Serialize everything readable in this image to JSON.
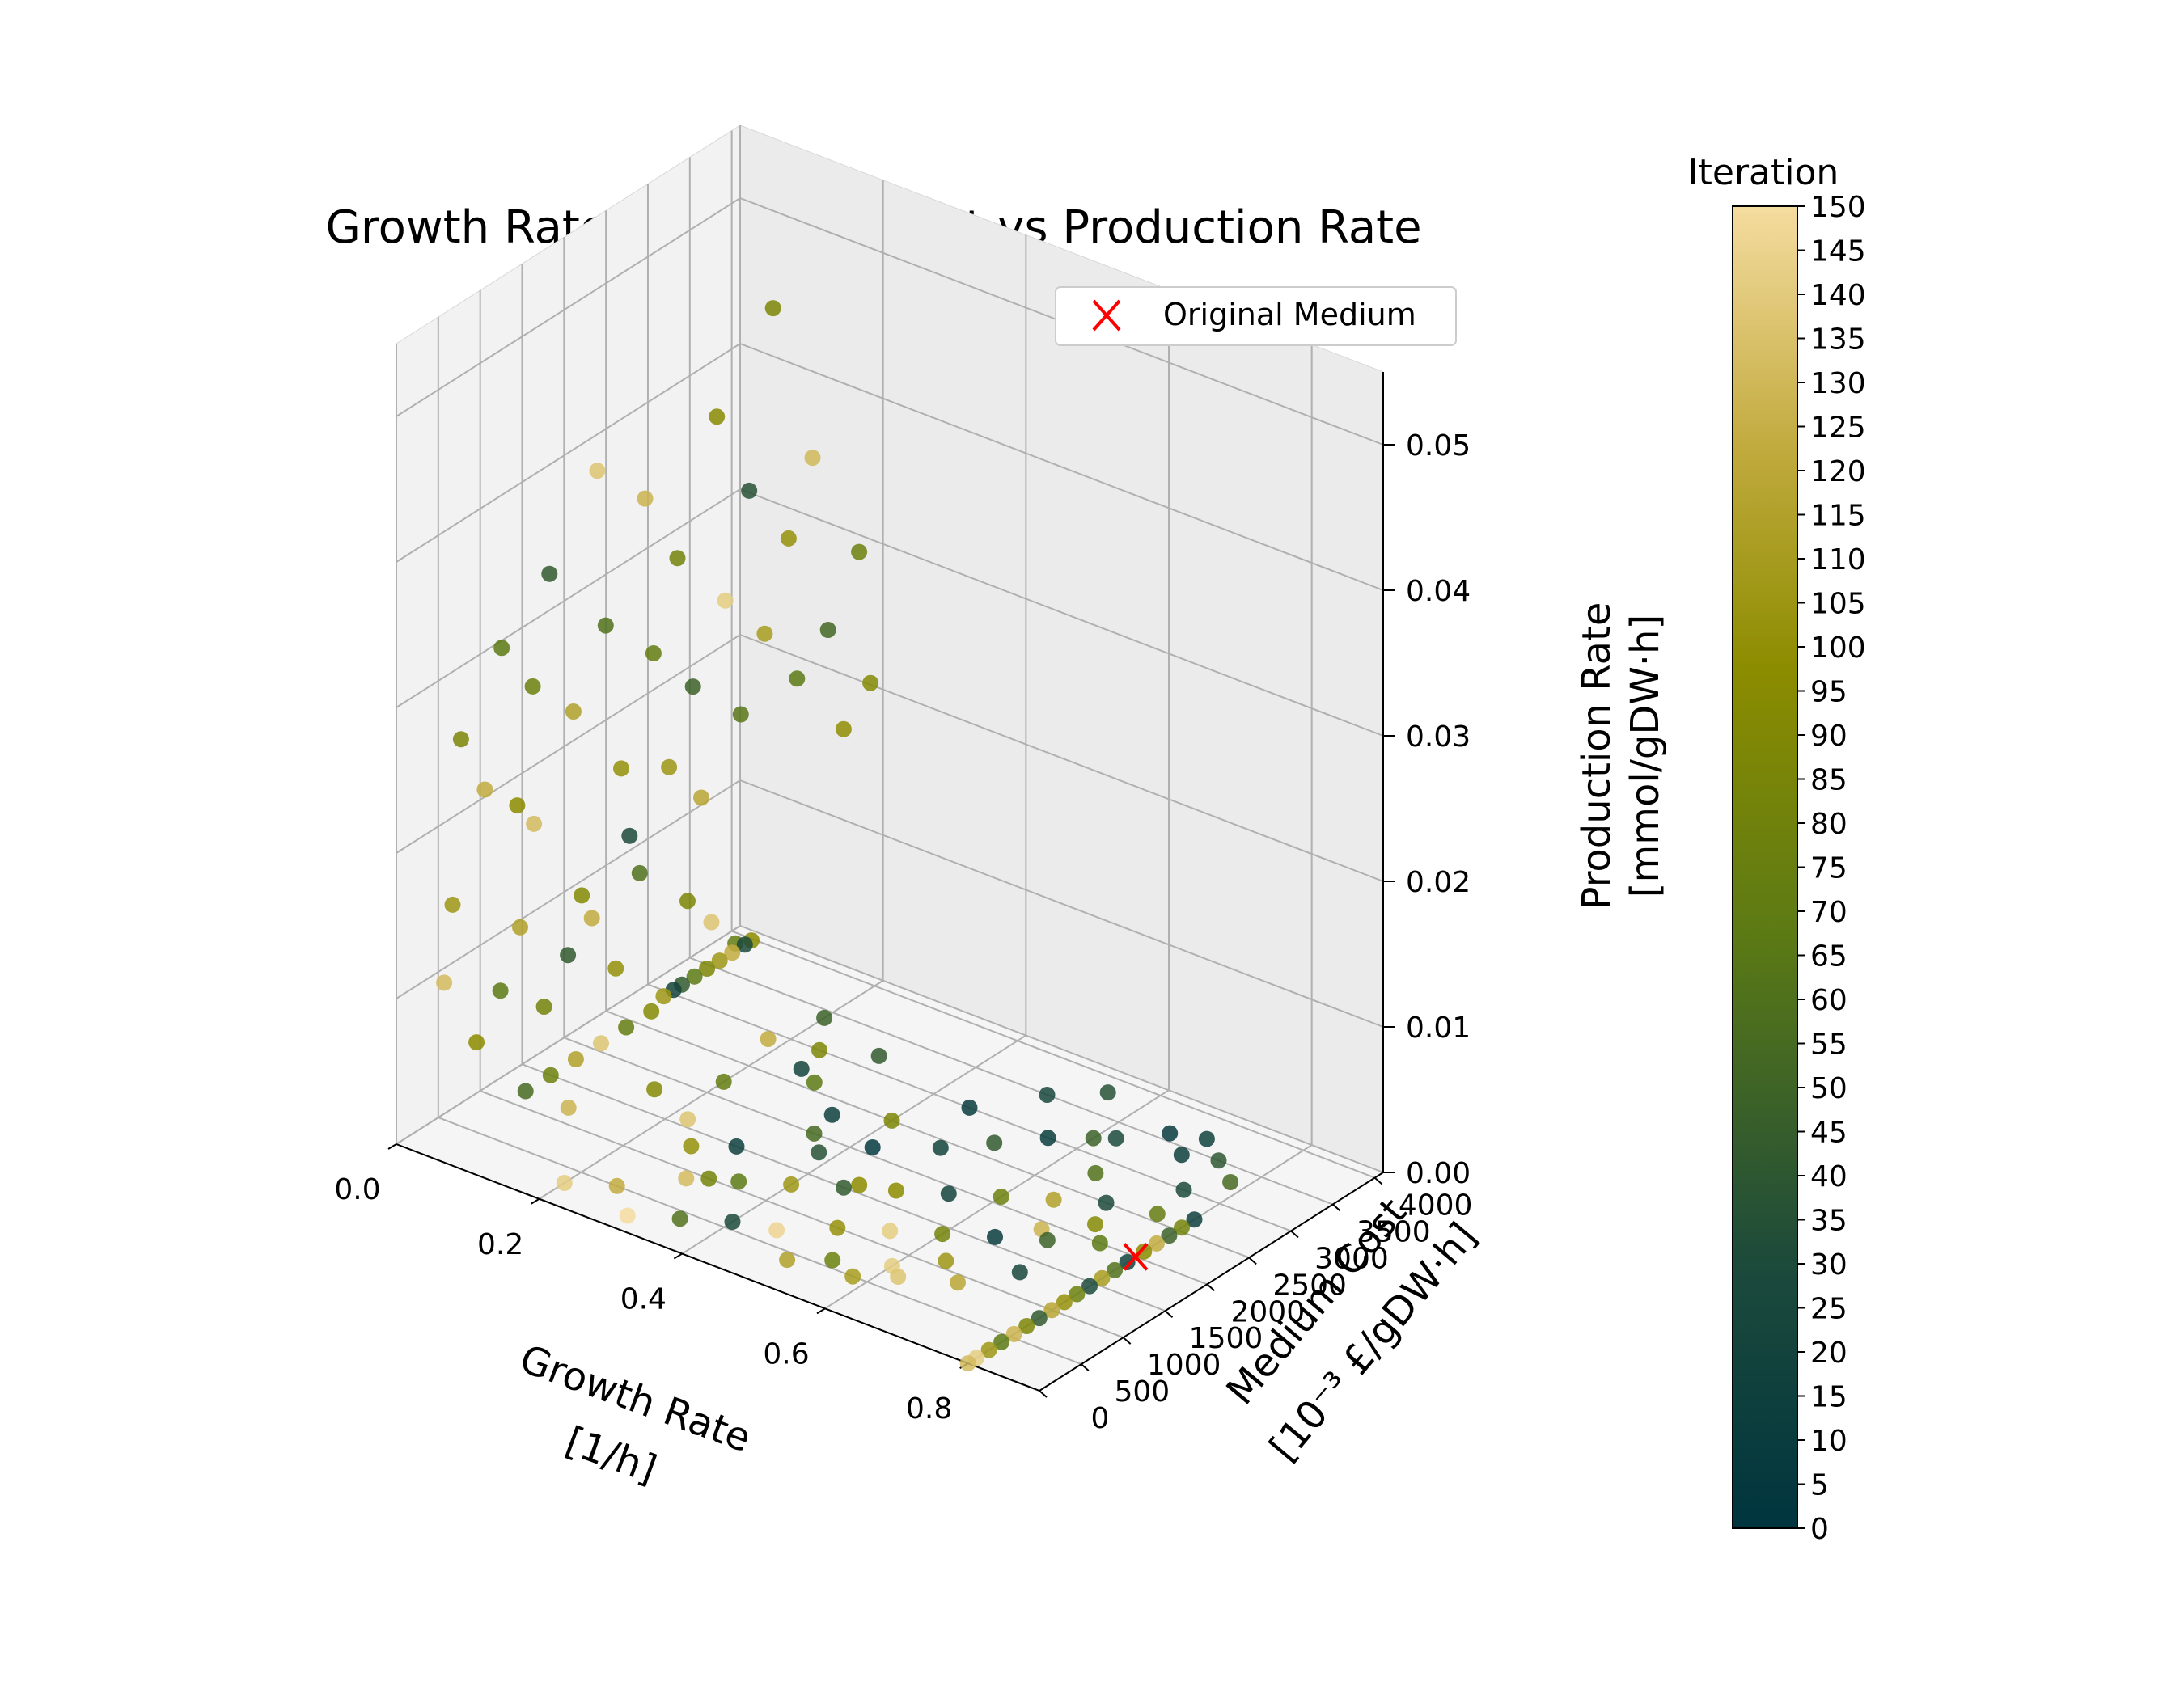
{
  "chart_data": {
    "type": "scatter",
    "title": "Growth Rate vs Medium Cost vs Production Rate",
    "xlabel": [
      "Growth Rate",
      "[1/h]"
    ],
    "ylabel": [
      "Medium Cost",
      "[10⁻³ £/gDW·h]"
    ],
    "zlabel": [
      "Production Rate",
      "[mmol/gDW·h]"
    ],
    "xlim": [
      0.0,
      0.9
    ],
    "ylim": [
      0,
      4100
    ],
    "zlim": [
      0.0,
      0.055
    ],
    "x_ticks": [
      0.0,
      0.2,
      0.4,
      0.6,
      0.8
    ],
    "x_tick_labels": [
      "0.0",
      "0.2",
      "0.4",
      "0.6",
      "0.8"
    ],
    "y_ticks": [
      0,
      500,
      1000,
      1500,
      2000,
      2500,
      3000,
      3500,
      4000
    ],
    "y_tick_labels": [
      "0",
      "500",
      "1000",
      "1500",
      "2000",
      "2500",
      "3000",
      "3500",
      "4000"
    ],
    "z_ticks": [
      0.0,
      0.01,
      0.02,
      0.03,
      0.04,
      0.05
    ],
    "z_tick_labels": [
      "0.00",
      "0.01",
      "0.02",
      "0.03",
      "0.04",
      "0.05"
    ],
    "grid": true,
    "legend": {
      "position": "top-right",
      "entries": [
        {
          "label": "Original Medium",
          "marker": "x",
          "color": "#ff0000"
        }
      ]
    },
    "original_medium": {
      "x": 0.8,
      "y": 2000,
      "z": 0.0
    },
    "colorbar": {
      "title": "Iteration",
      "range": [
        0,
        150
      ],
      "ticks": [
        0,
        5,
        10,
        15,
        20,
        25,
        30,
        35,
        40,
        45,
        50,
        55,
        60,
        65,
        70,
        75,
        80,
        85,
        90,
        95,
        100,
        105,
        110,
        115,
        120,
        125,
        130,
        135,
        140,
        145,
        150
      ],
      "tick_labels": [
        "0",
        "5",
        "10",
        "15",
        "20",
        "25",
        "30",
        "35",
        "40",
        "45",
        "50",
        "55",
        "60",
        "65",
        "70",
        "75",
        "80",
        "85",
        "90",
        "95",
        "100",
        "105",
        "110",
        "115",
        "120",
        "125",
        "130",
        "135",
        "140",
        "145",
        "150"
      ],
      "colors": [
        "#00353f",
        "#1c4a3b",
        "#5c7a14",
        "#8c8c00",
        "#c2ab3f",
        "#f5dca0"
      ]
    },
    "points": [
      [
        0.03,
        3050,
        0.0,
        20
      ],
      [
        0.03,
        3150,
        0.0,
        40
      ],
      [
        0.03,
        3300,
        0.0,
        60
      ],
      [
        0.03,
        3450,
        0.0,
        80
      ],
      [
        0.03,
        3600,
        0.0,
        100
      ],
      [
        0.03,
        3750,
        0.0,
        120
      ],
      [
        0.03,
        3900,
        0.0,
        30
      ],
      [
        0.03,
        3980,
        0.0,
        90
      ],
      [
        0.04,
        1200,
        0.0,
        50
      ],
      [
        0.04,
        1500,
        0.0,
        70
      ],
      [
        0.04,
        1800,
        0.0,
        110
      ],
      [
        0.04,
        2100,
        0.0,
        135
      ],
      [
        0.04,
        2400,
        0.0,
        65
      ],
      [
        0.04,
        2700,
        0.0,
        85
      ],
      [
        0.8,
        0,
        0.0,
        130
      ],
      [
        0.8,
        100,
        0.0,
        140
      ],
      [
        0.8,
        250,
        0.0,
        100
      ],
      [
        0.8,
        400,
        0.0,
        60
      ],
      [
        0.8,
        550,
        0.0,
        125
      ],
      [
        0.8,
        700,
        0.0,
        80
      ],
      [
        0.8,
        850,
        0.0,
        40
      ],
      [
        0.8,
        1000,
        0.0,
        115
      ],
      [
        0.8,
        1150,
        0.0,
        95
      ],
      [
        0.8,
        1300,
        0.0,
        70
      ],
      [
        0.8,
        1450,
        0.0,
        30
      ],
      [
        0.8,
        1600,
        0.0,
        105
      ],
      [
        0.8,
        1750,
        0.0,
        55
      ],
      [
        0.8,
        1900,
        0.0,
        20
      ],
      [
        0.8,
        2100,
        0.0,
        90
      ],
      [
        0.8,
        2250,
        0.0,
        120
      ],
      [
        0.8,
        2400,
        0.0,
        45
      ],
      [
        0.8,
        2550,
        0.0,
        75
      ],
      [
        0.8,
        2700,
        0.0,
        15
      ],
      [
        0.02,
        500,
        0.015,
        100
      ],
      [
        0.02,
        600,
        0.026,
        80
      ],
      [
        0.03,
        800,
        0.022,
        120
      ],
      [
        0.03,
        1000,
        0.031,
        60
      ],
      [
        0.04,
        1100,
        0.02,
        90
      ],
      [
        0.04,
        1300,
        0.018,
        130
      ],
      [
        0.05,
        1200,
        0.028,
        70
      ],
      [
        0.05,
        1400,
        0.035,
        40
      ],
      [
        0.06,
        1600,
        0.025,
        110
      ],
      [
        0.06,
        1700,
        0.012,
        85
      ],
      [
        0.07,
        1800,
        0.041,
        135
      ],
      [
        0.07,
        1900,
        0.03,
        55
      ],
      [
        0.08,
        2000,
        0.02,
        95
      ],
      [
        0.08,
        2100,
        0.015,
        30
      ],
      [
        0.09,
        2200,
        0.038,
        125
      ],
      [
        0.09,
        2300,
        0.027,
        65
      ],
      [
        0.1,
        2400,
        0.019,
        100
      ],
      [
        0.1,
        2500,
        0.033,
        75
      ],
      [
        0.11,
        2600,
        0.024,
        45
      ],
      [
        0.11,
        2700,
        0.016,
        115
      ],
      [
        0.12,
        2800,
        0.042,
        88
      ],
      [
        0.12,
        2900,
        0.029,
        140
      ],
      [
        0.13,
        3000,
        0.021,
        58
      ],
      [
        0.13,
        3100,
        0.036,
        35
      ],
      [
        0.14,
        3200,
        0.026,
        105
      ],
      [
        0.14,
        3300,
        0.048,
        80
      ],
      [
        0.15,
        3400,
        0.032,
        95
      ],
      [
        0.15,
        3500,
        0.022,
        60
      ],
      [
        0.16,
        3600,
        0.037,
        128
      ],
      [
        0.17,
        3700,
        0.025,
        48
      ],
      [
        0.18,
        3800,
        0.018,
        92
      ],
      [
        0.19,
        3900,
        0.03,
        70
      ],
      [
        0.2,
        3950,
        0.021,
        85
      ],
      [
        0.02,
        400,
        0.01,
        130
      ],
      [
        0.03,
        700,
        0.005,
        90
      ],
      [
        0.04,
        900,
        0.008,
        60
      ],
      [
        0.05,
        1050,
        0.012,
        110
      ],
      [
        0.06,
        1250,
        0.006,
        75
      ],
      [
        0.07,
        1450,
        0.009,
        40
      ],
      [
        0.08,
        1650,
        0.011,
        120
      ],
      [
        0.09,
        1850,
        0.007,
        95
      ],
      [
        0.1,
        2050,
        0.013,
        55
      ],
      [
        0.11,
        2250,
        0.004,
        100
      ],
      [
        0.12,
        2450,
        0.01,
        80
      ],
      [
        0.13,
        2650,
        0.008,
        135
      ],
      [
        0.14,
        2850,
        0.006,
        65
      ],
      [
        0.2,
        300,
        0.0,
        140
      ],
      [
        0.25,
        500,
        0.0,
        120
      ],
      [
        0.3,
        900,
        0.0,
        130
      ],
      [
        0.35,
        1100,
        0.0,
        60
      ],
      [
        0.4,
        1300,
        0.0,
        100
      ],
      [
        0.45,
        1500,
        0.0,
        40
      ],
      [
        0.5,
        1700,
        0.0,
        90
      ],
      [
        0.55,
        1900,
        0.0,
        20
      ],
      [
        0.6,
        2100,
        0.0,
        70
      ],
      [
        0.65,
        2300,
        0.0,
        110
      ],
      [
        0.7,
        2500,
        0.0,
        30
      ],
      [
        0.3,
        1500,
        0.0,
        15
      ],
      [
        0.35,
        2000,
        0.0,
        50
      ],
      [
        0.4,
        2500,
        0.0,
        80
      ],
      [
        0.45,
        3000,
        0.0,
        10
      ],
      [
        0.5,
        3500,
        0.0,
        25
      ],
      [
        0.55,
        3800,
        0.0,
        35
      ],
      [
        0.6,
        3200,
        0.0,
        45
      ],
      [
        0.65,
        2800,
        0.0,
        55
      ],
      [
        0.7,
        3400,
        0.0,
        15
      ],
      [
        0.75,
        3000,
        0.0,
        30
      ],
      [
        0.3,
        3200,
        0.0,
        40
      ],
      [
        0.25,
        2700,
        0.0,
        20
      ],
      [
        0.2,
        2200,
        0.0,
        65
      ],
      [
        0.15,
        1800,
        0.0,
        85
      ],
      [
        0.1,
        1200,
        0.0,
        125
      ],
      [
        0.5,
        1000,
        0.0,
        95
      ],
      [
        0.55,
        1200,
        0.0,
        140
      ],
      [
        0.6,
        1400,
        0.0,
        75
      ],
      [
        0.65,
        1600,
        0.0,
        10
      ],
      [
        0.7,
        1800,
        0.0,
        45
      ],
      [
        0.75,
        2000,
        0.0,
        60
      ],
      [
        0.72,
        1300,
        0.0,
        25
      ],
      [
        0.68,
        900,
        0.0,
        115
      ],
      [
        0.62,
        700,
        0.0,
        135
      ],
      [
        0.58,
        500,
        0.0,
        105
      ],
      [
        0.45,
        700,
        0.0,
        145
      ],
      [
        0.4,
        600,
        0.0,
        30
      ],
      [
        0.35,
        400,
        0.0,
        55
      ],
      [
        0.3,
        200,
        0.0,
        150
      ],
      [
        0.42,
        2100,
        0.0,
        5
      ],
      [
        0.48,
        2400,
        0.0,
        20
      ],
      [
        0.52,
        2700,
        0.0,
        40
      ],
      [
        0.56,
        3000,
        0.0,
        12
      ],
      [
        0.62,
        3300,
        0.0,
        28
      ],
      [
        0.66,
        3600,
        0.0,
        8
      ],
      [
        0.7,
        3700,
        0.0,
        18
      ],
      [
        0.74,
        3500,
        0.0,
        38
      ],
      [
        0.78,
        3300,
        0.0,
        50
      ],
      [
        0.76,
        2600,
        0.0,
        65
      ],
      [
        0.72,
        2200,
        0.0,
        85
      ],
      [
        0.68,
        1900,
        0.0,
        125
      ],
      [
        0.64,
        1100,
        0.0,
        100
      ],
      [
        0.6,
        800,
        0.0,
        140
      ],
      [
        0.54,
        600,
        0.0,
        70
      ],
      [
        0.5,
        400,
        0.0,
        110
      ],
      [
        0.46,
        1600,
        0.0,
        90
      ],
      [
        0.38,
        1800,
        0.0,
        35
      ],
      [
        0.34,
        2300,
        0.0,
        15
      ],
      [
        0.28,
        2600,
        0.0,
        60
      ],
      [
        0.24,
        3000,
        0.0,
        80
      ],
      [
        0.2,
        3400,
        0.0,
        45
      ],
      [
        0.18,
        2900,
        0.0,
        120
      ],
      [
        0.22,
        1600,
        0.0,
        135
      ],
      [
        0.26,
        1300,
        0.0,
        95
      ],
      [
        0.32,
        1000,
        0.0,
        75
      ]
    ]
  }
}
